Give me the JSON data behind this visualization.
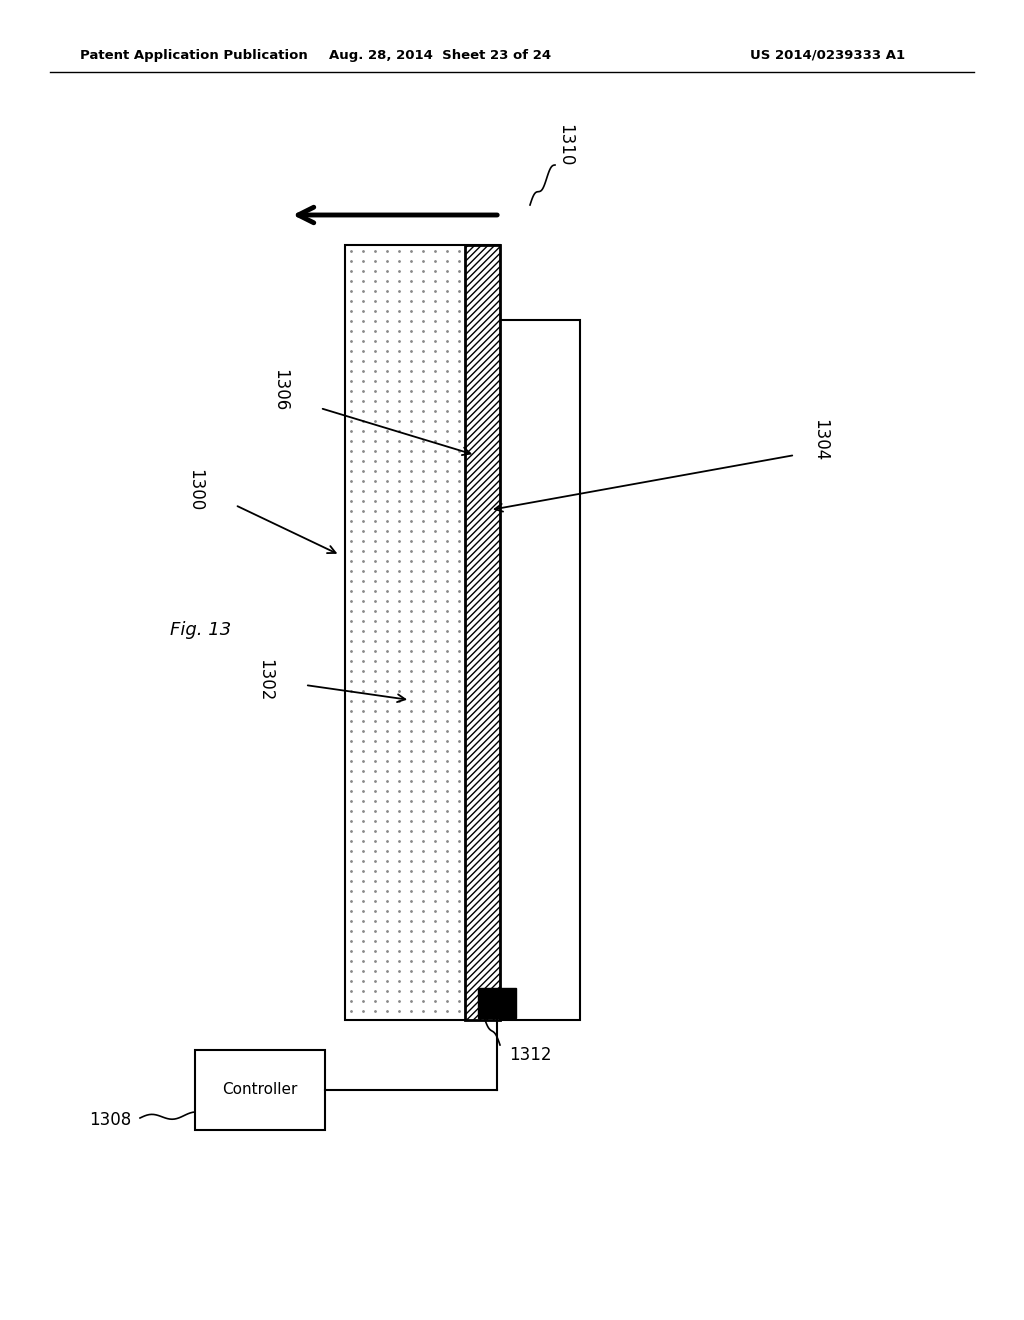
{
  "title_left": "Patent Application Publication",
  "title_mid": "Aug. 28, 2014  Sheet 23 of 24",
  "title_right": "US 2014/0239333 A1",
  "bg_color": "#ffffff"
}
